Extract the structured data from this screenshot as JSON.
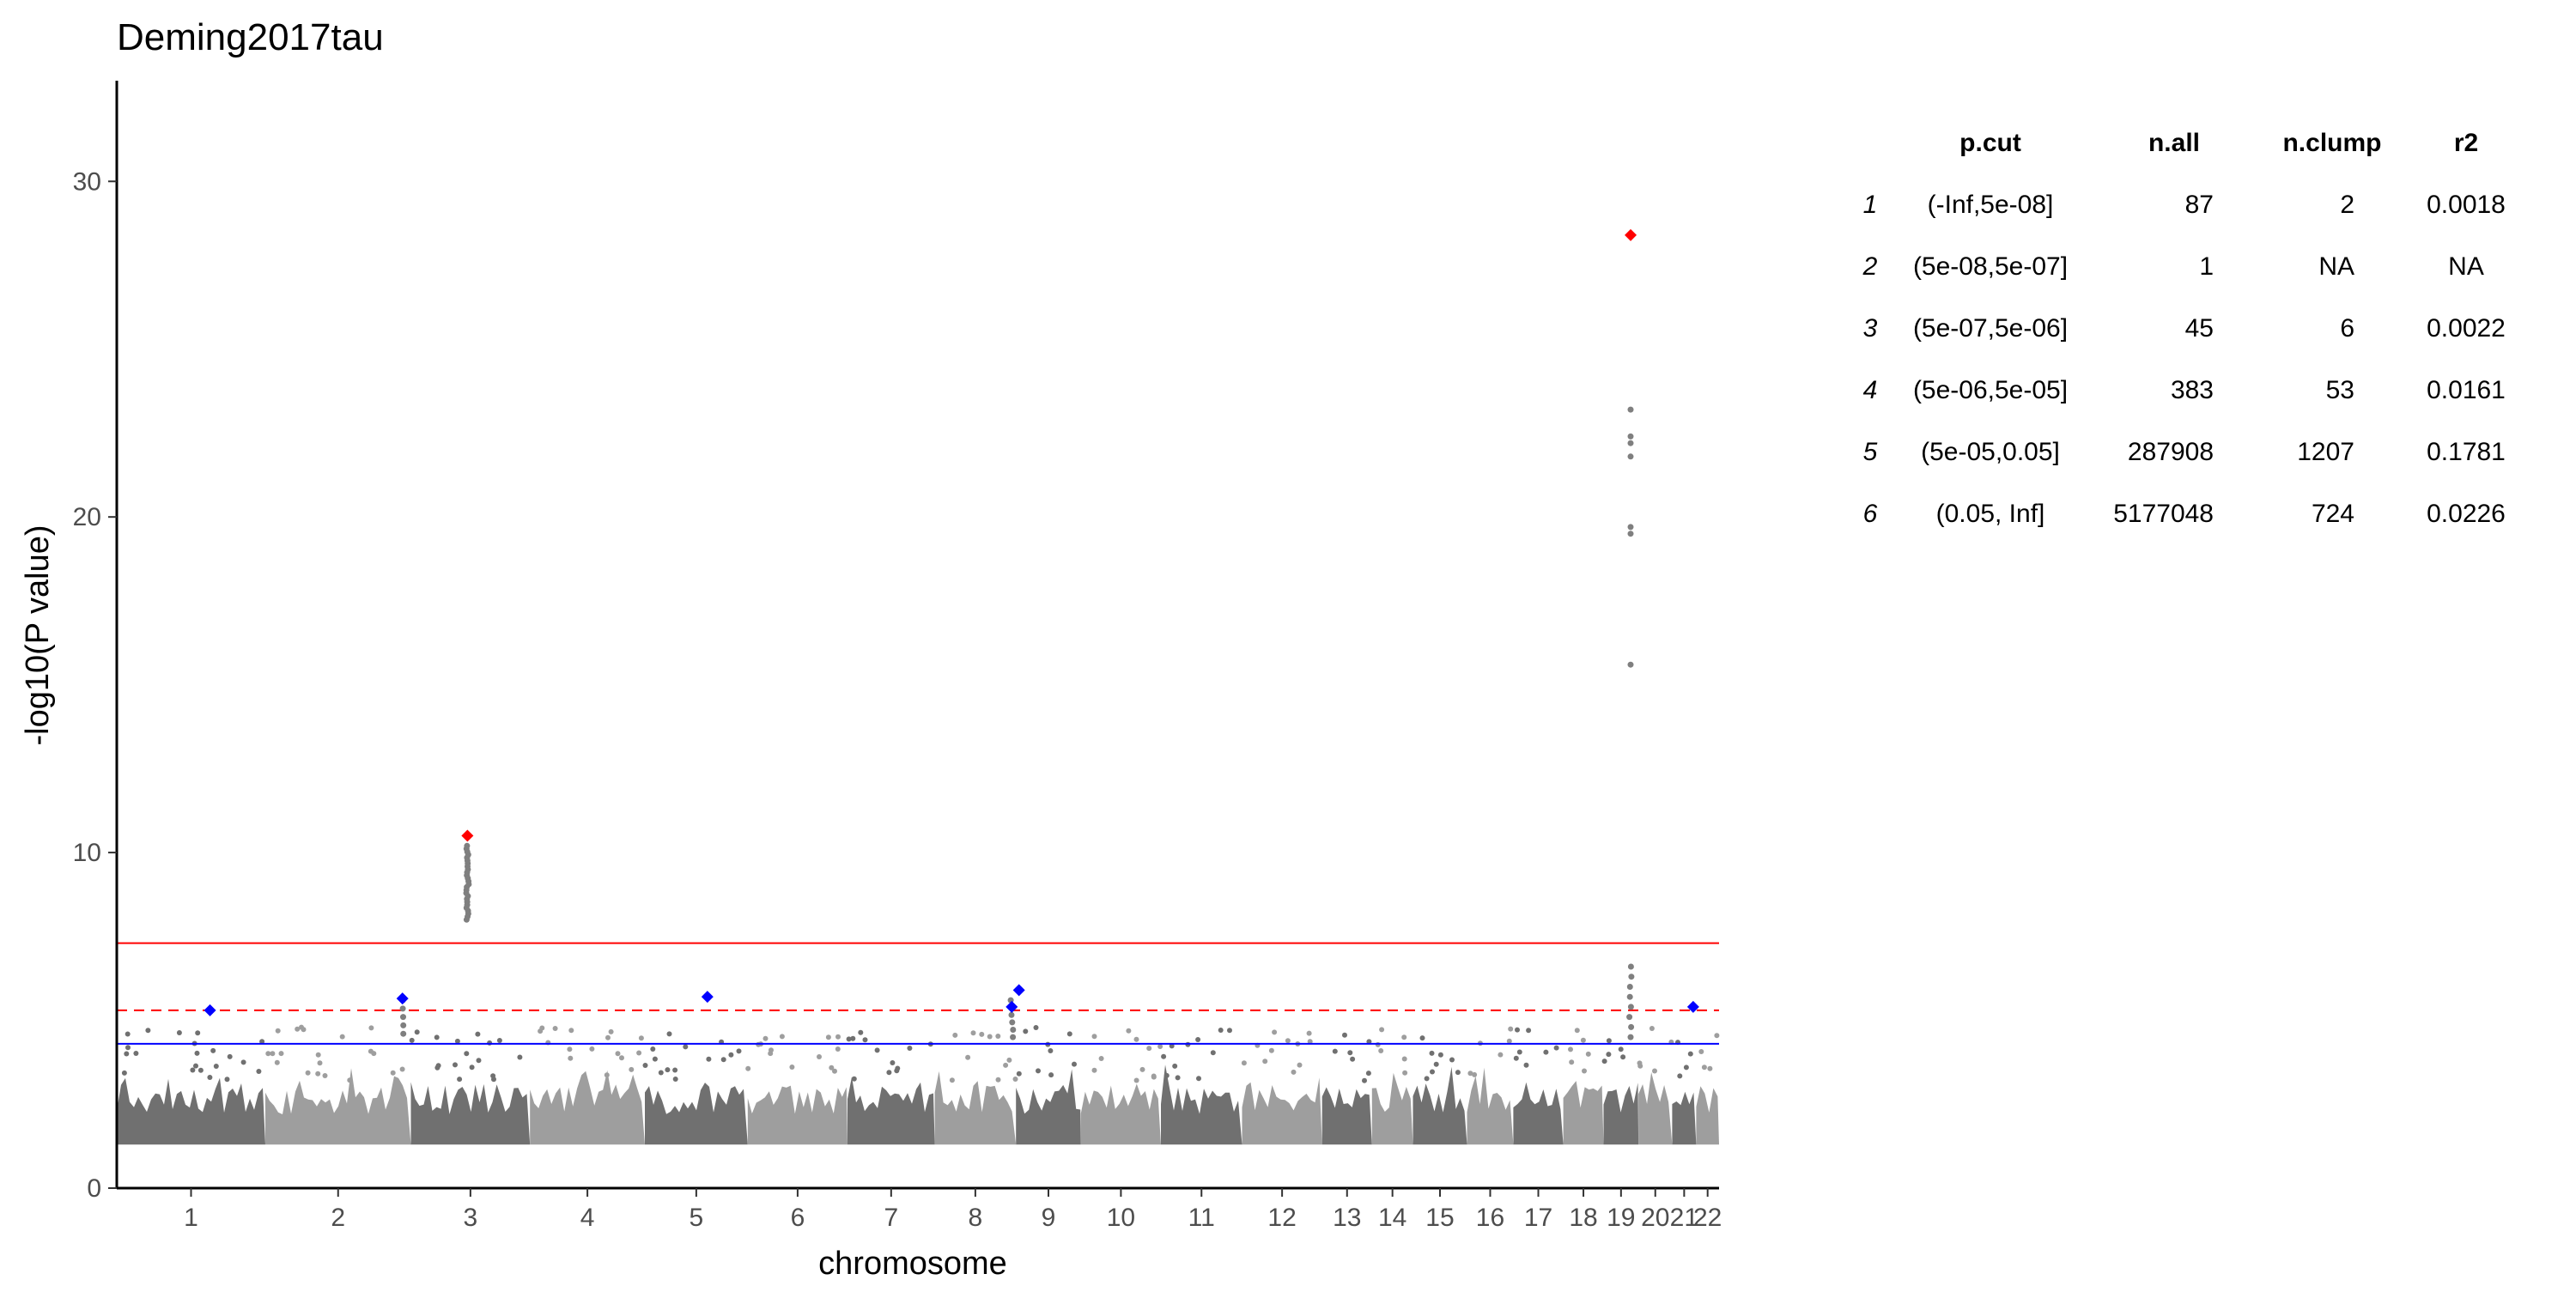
{
  "chart_data": {
    "type": "scatter",
    "title": "Deming2017tau",
    "xlabel": "chromosome",
    "ylabel": "-log10(P value)",
    "ylim": [
      0,
      33
    ],
    "y_ticks": [
      0,
      10,
      20,
      30
    ],
    "grid": false,
    "legend": "none",
    "chromosomes": [
      {
        "label": "1",
        "start": 0,
        "end": 247
      },
      {
        "label": "2",
        "start": 247,
        "end": 489
      },
      {
        "label": "3",
        "start": 489,
        "end": 687
      },
      {
        "label": "4",
        "start": 687,
        "end": 878
      },
      {
        "label": "5",
        "start": 878,
        "end": 1049
      },
      {
        "label": "6",
        "start": 1049,
        "end": 1215
      },
      {
        "label": "7",
        "start": 1215,
        "end": 1360
      },
      {
        "label": "8",
        "start": 1360,
        "end": 1495
      },
      {
        "label": "9",
        "start": 1495,
        "end": 1603
      },
      {
        "label": "10",
        "start": 1603,
        "end": 1736
      },
      {
        "label": "11",
        "start": 1736,
        "end": 1871
      },
      {
        "label": "12",
        "start": 1871,
        "end": 2004
      },
      {
        "label": "13",
        "start": 2004,
        "end": 2087
      },
      {
        "label": "14",
        "start": 2087,
        "end": 2155
      },
      {
        "label": "15",
        "start": 2155,
        "end": 2245
      },
      {
        "label": "16",
        "start": 2245,
        "end": 2322
      },
      {
        "label": "17",
        "start": 2322,
        "end": 2405
      },
      {
        "label": "18",
        "start": 2405,
        "end": 2472
      },
      {
        "label": "19",
        "start": 2472,
        "end": 2530
      },
      {
        "label": "20",
        "start": 2530,
        "end": 2586
      },
      {
        "label": "21",
        "start": 2586,
        "end": 2626
      },
      {
        "label": "22",
        "start": 2626,
        "end": 2664
      }
    ],
    "x_range": [
      0,
      2664
    ],
    "background_pvalue_floor": 1.3,
    "thresholds": [
      {
        "name": "genome-wide",
        "value": 7.3,
        "color": "#ff0000",
        "style": "solid"
      },
      {
        "name": "suggestive",
        "value": 5.3,
        "color": "#ff0000",
        "style": "dashed"
      },
      {
        "name": "nominal",
        "value": 4.3,
        "color": "#0000ff",
        "style": "solid"
      }
    ],
    "peaks": [
      {
        "chr": "3",
        "pos": 94,
        "max": 10.2,
        "min": 8.0,
        "n": 26
      },
      {
        "chr": "19",
        "pos": 45,
        "max": 6.6,
        "min": 4.5,
        "n": 8
      },
      {
        "chr": "8",
        "pos": 128,
        "max": 5.6,
        "min": 4.5,
        "n": 6
      },
      {
        "chr": "2",
        "pos": 228,
        "max": 5.6,
        "min": 4.6,
        "n": 5
      }
    ],
    "extra_points": [
      {
        "chr": "19",
        "pos": 45,
        "y": 23.2
      },
      {
        "chr": "19",
        "pos": 45,
        "y": 22.4
      },
      {
        "chr": "19",
        "pos": 45,
        "y": 22.2
      },
      {
        "chr": "19",
        "pos": 45,
        "y": 21.8
      },
      {
        "chr": "19",
        "pos": 45,
        "y": 19.7
      },
      {
        "chr": "19",
        "pos": 45,
        "y": 19.5
      },
      {
        "chr": "19",
        "pos": 45,
        "y": 15.6
      }
    ],
    "lead_snps": [
      {
        "chr": "3",
        "pos": 94,
        "y": 10.5,
        "color": "#ff0000"
      },
      {
        "chr": "19",
        "pos": 45,
        "y": 28.4,
        "color": "#ff0000"
      },
      {
        "chr": "1",
        "pos": 155,
        "y": 5.3,
        "color": "#0000ff"
      },
      {
        "chr": "2",
        "pos": 228,
        "y": 5.65,
        "color": "#0000ff"
      },
      {
        "chr": "5",
        "pos": 104,
        "y": 5.7,
        "color": "#0000ff"
      },
      {
        "chr": "8",
        "pos": 128,
        "y": 5.4,
        "color": "#0000ff"
      },
      {
        "chr": "9",
        "pos": 5,
        "y": 5.9,
        "color": "#0000ff"
      },
      {
        "chr": "21",
        "pos": 35,
        "y": 5.4,
        "color": "#0000ff"
      }
    ],
    "colors": {
      "dark": "#707070",
      "light": "#9e9e9e",
      "point": "#7f7f7f"
    }
  },
  "summary_table": {
    "headers": [
      "p.cut",
      "n.all",
      "n.clump",
      "r2"
    ],
    "rows": [
      {
        "idx": "1",
        "pcut": "(-Inf,5e-08]",
        "nall": "87",
        "nclump": "2",
        "r2": "0.0018"
      },
      {
        "idx": "2",
        "pcut": "(5e-08,5e-07]",
        "nall": "1",
        "nclump": "NA",
        "r2": "NA"
      },
      {
        "idx": "3",
        "pcut": "(5e-07,5e-06]",
        "nall": "45",
        "nclump": "6",
        "r2": "0.0022"
      },
      {
        "idx": "4",
        "pcut": "(5e-06,5e-05]",
        "nall": "383",
        "nclump": "53",
        "r2": "0.0161"
      },
      {
        "idx": "5",
        "pcut": "(5e-05,0.05]",
        "nall": "287908",
        "nclump": "1207",
        "r2": "0.1781"
      },
      {
        "idx": "6",
        "pcut": "(0.05, Inf]",
        "nall": "5177048",
        "nclump": "724",
        "r2": "0.0226"
      }
    ]
  }
}
